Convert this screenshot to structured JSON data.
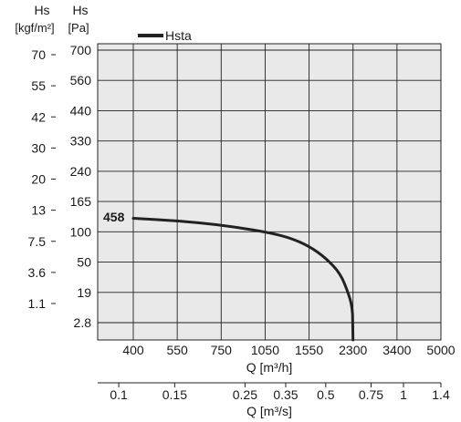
{
  "chart_data": {
    "type": "line",
    "axes": {
      "y_primary": {
        "title_line1": "Hs",
        "title_line2": "[Pa]",
        "ticks": [
          "700",
          "560",
          "440",
          "330",
          "240",
          "165",
          "100",
          "50",
          "19",
          "2.8"
        ]
      },
      "y_secondary": {
        "title_line1": "Hs",
        "title_line2": "[kgf/m²]",
        "ticks": [
          "70",
          "55",
          "42",
          "30",
          "20",
          "13",
          "7.5",
          "3.6",
          "1.1"
        ]
      },
      "x_primary": {
        "label": "Q [m³/h]",
        "ticks": [
          "400",
          "550",
          "750",
          "1050",
          "1550",
          "2300",
          "3400",
          "5000"
        ]
      },
      "x_secondary": {
        "label": "Q [m³/s]",
        "ticks": [
          "0.1",
          "0.15",
          "0.25",
          "0.35",
          "0.5",
          "0.75",
          "1",
          "1.4"
        ],
        "tick_positions": [
          0.1,
          0.15,
          0.25,
          0.35,
          0.5,
          0.75,
          1,
          1.4
        ]
      }
    },
    "grid": true,
    "legend": {
      "position": "top-left",
      "entries": [
        "Hsta"
      ]
    },
    "series": [
      {
        "name": "Hsta",
        "label": "458",
        "color": "#222222",
        "points": [
          {
            "x": 400,
            "y": 125
          },
          {
            "x": 550,
            "y": 120
          },
          {
            "x": 750,
            "y": 112
          },
          {
            "x": 1050,
            "y": 100
          },
          {
            "x": 1300,
            "y": 88
          },
          {
            "x": 1550,
            "y": 72
          },
          {
            "x": 1800,
            "y": 55
          },
          {
            "x": 2050,
            "y": 35
          },
          {
            "x": 2200,
            "y": 19
          },
          {
            "x": 2280,
            "y": 8
          },
          {
            "x": 2300,
            "y": 2.8
          }
        ]
      }
    ]
  }
}
